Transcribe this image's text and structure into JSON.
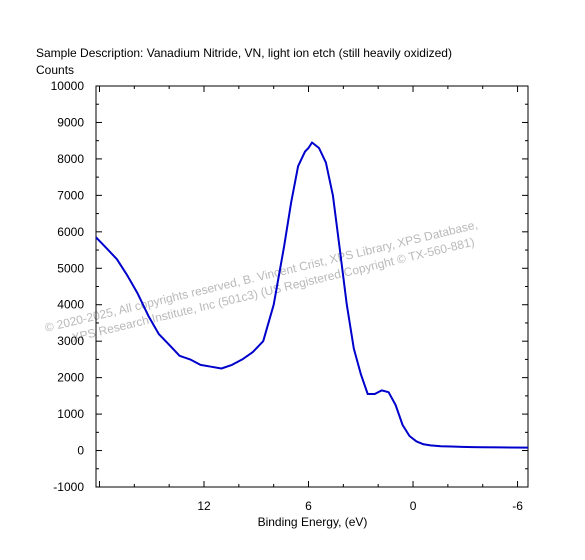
{
  "chart_data": {
    "type": "line",
    "title": "Sample Description:  Vanadium Nitride, VN, light ion etch (still heavily oxidized)",
    "ylabel": "Counts",
    "xlabel": "Binding Energy, (eV)",
    "xlim": [
      18.2,
      -6.6
    ],
    "ylim": [
      -1000,
      10000
    ],
    "x_ticks": [
      {
        "value": 12,
        "label": "12"
      },
      {
        "value": 6,
        "label": "6"
      },
      {
        "value": 0,
        "label": "0"
      },
      {
        "value": -6,
        "label": "-6"
      }
    ],
    "y_ticks": [
      {
        "value": 10000,
        "label": "10000"
      },
      {
        "value": 9000,
        "label": "9000"
      },
      {
        "value": 8000,
        "label": "8000"
      },
      {
        "value": 7000,
        "label": "7000"
      },
      {
        "value": 6000,
        "label": "6000"
      },
      {
        "value": 5000,
        "label": "5000"
      },
      {
        "value": 4000,
        "label": "4000"
      },
      {
        "value": 3000,
        "label": "3000"
      },
      {
        "value": 2000,
        "label": "2000"
      },
      {
        "value": 1000,
        "label": "1000"
      },
      {
        "value": 0,
        "label": "0"
      },
      {
        "value": -1000,
        "label": "-1000"
      }
    ],
    "line_color": "#0000cc",
    "series": [
      {
        "x": [
          18.2,
          17.6,
          17.0,
          16.4,
          15.8,
          15.2,
          14.6,
          14.0,
          13.4,
          12.8,
          12.2,
          11.6,
          11.0,
          10.4,
          9.8,
          9.2,
          8.6,
          8.0,
          7.4,
          7.0,
          6.6,
          6.2,
          6.0,
          5.8,
          5.4,
          5.0,
          4.6,
          4.2,
          3.8,
          3.4,
          3.0,
          2.6,
          2.2,
          1.8,
          1.4,
          1.0,
          0.6,
          0.2,
          -0.2,
          -0.6,
          -1.0,
          -1.6,
          -2.2,
          -2.8,
          -3.4,
          -4.0,
          -5.0,
          -6.6
        ],
        "y": [
          5850,
          5550,
          5250,
          4800,
          4300,
          3700,
          3200,
          2900,
          2600,
          2500,
          2350,
          2300,
          2250,
          2350,
          2500,
          2700,
          3000,
          4000,
          5600,
          6800,
          7800,
          8200,
          8300,
          8450,
          8300,
          7900,
          7000,
          5500,
          4000,
          2800,
          2100,
          1550,
          1550,
          1650,
          1600,
          1250,
          700,
          400,
          250,
          170,
          140,
          120,
          110,
          100,
          95,
          90,
          85,
          80
        ]
      }
    ]
  },
  "watermark": {
    "line1": "©  2020-2025,  All copyrights reserved,  B. Vincent Crist,  XPS Library, XPS Database,",
    "line2": "XPS Research Institute, Inc (501c3)   (US Registered Copyright © TX-560-881)",
    "color": "#b9b9b9"
  }
}
